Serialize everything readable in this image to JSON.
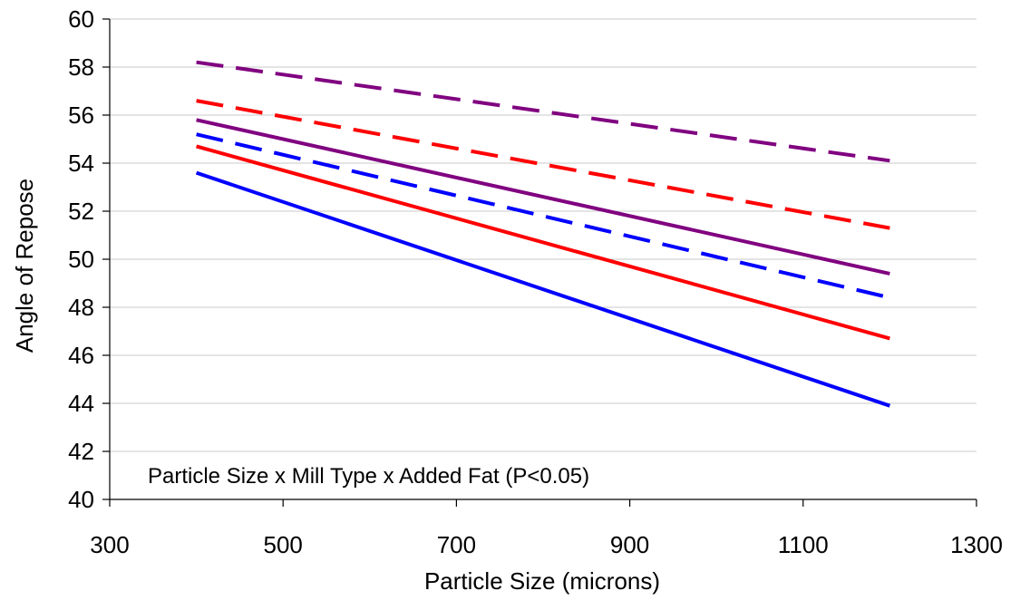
{
  "chart_data": {
    "type": "line",
    "xlabel": "Particle Size (microns)",
    "ylabel": "Angle of Repose",
    "annotation": "Particle Size x Mill Type x Added Fat (P<0.05)",
    "xlim": [
      300,
      1300
    ],
    "ylim": [
      40,
      60
    ],
    "xticks": [
      300,
      500,
      700,
      900,
      1100,
      1300
    ],
    "yticks": [
      40,
      42,
      44,
      46,
      48,
      50,
      52,
      54,
      56,
      58,
      60
    ],
    "grid": "horizontal",
    "legend": "none",
    "series": [
      {
        "x": [
          400,
          1200
        ],
        "values": [
          53.6,
          43.9
        ],
        "color": "#0000ff",
        "dash": "solid"
      },
      {
        "x": [
          400,
          1200
        ],
        "values": [
          54.7,
          46.7
        ],
        "color": "#ff0000",
        "dash": "solid"
      },
      {
        "x": [
          400,
          1200
        ],
        "values": [
          55.8,
          49.4
        ],
        "color": "#800080",
        "dash": "solid"
      },
      {
        "x": [
          400,
          1200
        ],
        "values": [
          55.2,
          48.4
        ],
        "color": "#0000ff",
        "dash": "dashed"
      },
      {
        "x": [
          400,
          1200
        ],
        "values": [
          56.6,
          51.3
        ],
        "color": "#ff0000",
        "dash": "dashed"
      },
      {
        "x": [
          400,
          1200
        ],
        "values": [
          58.2,
          54.1
        ],
        "color": "#800080",
        "dash": "dashed"
      }
    ]
  }
}
